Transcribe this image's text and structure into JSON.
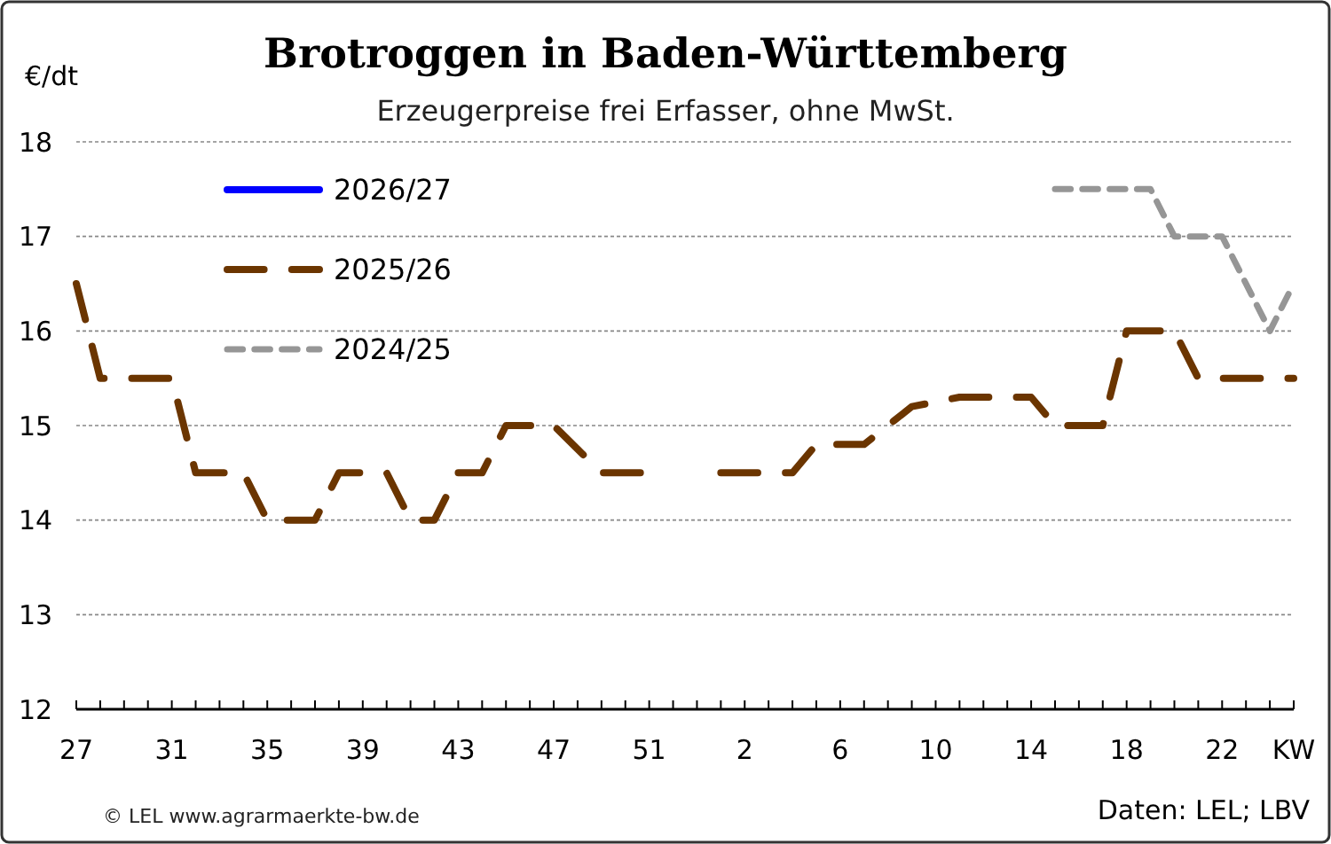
{
  "chart_data": {
    "type": "line",
    "title": "Brotroggen in Baden-Württemberg",
    "subtitle": "Erzeugerpreise frei Erfasser, ohne MwSt.",
    "ylabel": "€/dt",
    "xlabel": "KW",
    "categories": [
      "27",
      null,
      null,
      null,
      "31",
      null,
      null,
      null,
      "35",
      null,
      null,
      null,
      "39",
      null,
      null,
      null,
      "43",
      null,
      null,
      null,
      "47",
      null,
      null,
      null,
      "51",
      null,
      null,
      null,
      "2",
      null,
      null,
      null,
      "6",
      null,
      null,
      null,
      "10",
      null,
      null,
      null,
      "14",
      null,
      null,
      null,
      "18",
      null,
      null,
      null,
      "22",
      null,
      null,
      null
    ],
    "series": [
      {
        "name": "2026/27",
        "color": "#0000ff",
        "line_style": "solid",
        "values": [
          null,
          null,
          null,
          null,
          null,
          null,
          null,
          null,
          null,
          null,
          null,
          null,
          null,
          null,
          null,
          null,
          null,
          null,
          null,
          null,
          null,
          null,
          null,
          null,
          null,
          null,
          null,
          null,
          null,
          null,
          null,
          null,
          null,
          null,
          null,
          null,
          null,
          null,
          null,
          null,
          null,
          null,
          null,
          null,
          null,
          null,
          null,
          null,
          null,
          null,
          null,
          null
        ]
      },
      {
        "name": "2025/26",
        "color": "#6b3500",
        "line_style": "dashed",
        "values": [
          16.5,
          15.5,
          15.5,
          15.5,
          15.5,
          14.5,
          14.5,
          14.5,
          14,
          14,
          14,
          14.5,
          14.5,
          14.5,
          14,
          14,
          14.5,
          14.5,
          15,
          15,
          15,
          14.75,
          14.5,
          14.5,
          14.5,
          null,
          null,
          14.5,
          14.5,
          14.5,
          14.5,
          14.8,
          14.8,
          14.8,
          15,
          15.2,
          15.25,
          15.3,
          15.3,
          15.3,
          15.3,
          15,
          15,
          15,
          16,
          16,
          16,
          15.5,
          15.5,
          15.5,
          15.5,
          15.5
        ]
      },
      {
        "name": "2024/25",
        "color": "#969696",
        "line_style": "dashed",
        "values": [
          null,
          null,
          null,
          null,
          null,
          null,
          null,
          null,
          null,
          null,
          null,
          null,
          null,
          null,
          null,
          null,
          null,
          null,
          null,
          null,
          null,
          null,
          null,
          null,
          null,
          null,
          null,
          null,
          null,
          null,
          null,
          null,
          null,
          null,
          null,
          null,
          null,
          null,
          null,
          null,
          null,
          17.5,
          17.5,
          17.5,
          17.5,
          17.5,
          17,
          17,
          17,
          16.5,
          16,
          16.5
        ]
      }
    ],
    "ylim": [
      12,
      18
    ],
    "yticks": [
      12,
      13,
      14,
      15,
      16,
      17,
      18
    ],
    "grid": "y",
    "legend": "top left",
    "annotations": [
      "© LEL www.agrarmaerkte-bw.de",
      "Daten: LEL; LBV"
    ]
  }
}
